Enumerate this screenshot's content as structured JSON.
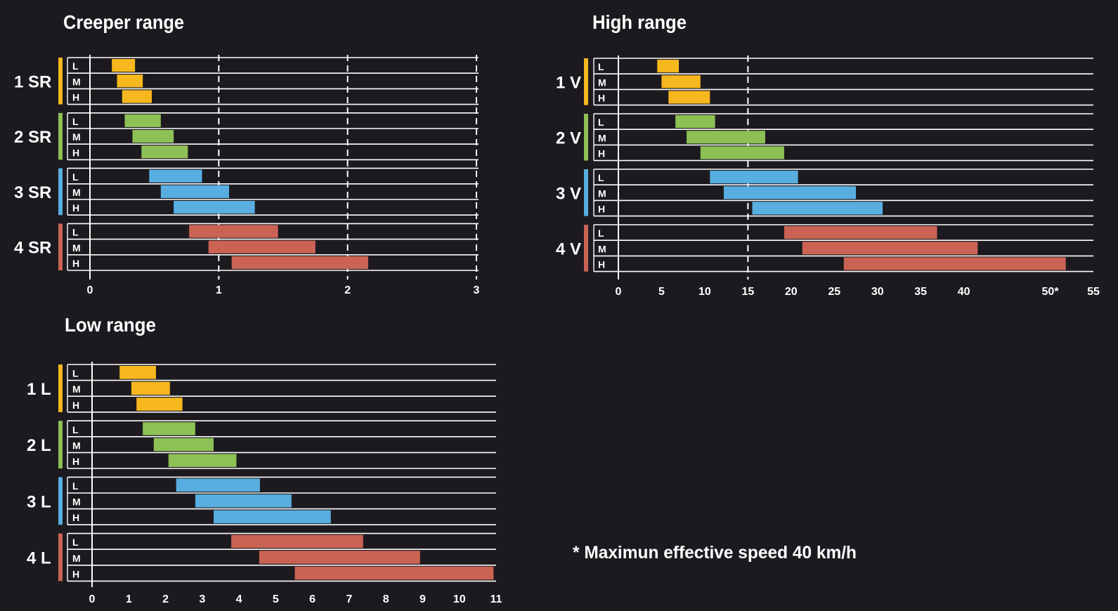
{
  "colors": {
    "background": "#1c1a1f",
    "gear1": "#f7b71e",
    "gear2": "#8dc055",
    "gear3": "#58aee0",
    "gear4": "#cb6354",
    "lines": "#ffffff"
  },
  "chart_data": [
    {
      "id": "creeper",
      "type": "bar",
      "orientation": "horizontal-range",
      "title": "Creeper range",
      "xlim": [
        0,
        3
      ],
      "xticks": [
        "0",
        "1",
        "2",
        "3"
      ],
      "dashed_at": [
        1,
        2,
        3
      ],
      "row_labels": [
        "L",
        "M",
        "H"
      ],
      "groups": [
        {
          "label": "1 SR",
          "color_key": "gear1",
          "bars": [
            [
              0.17,
              0.35
            ],
            [
              0.21,
              0.41
            ],
            [
              0.25,
              0.48
            ]
          ]
        },
        {
          "label": "2 SR",
          "color_key": "gear2",
          "bars": [
            [
              0.27,
              0.55
            ],
            [
              0.33,
              0.65
            ],
            [
              0.4,
              0.76
            ]
          ]
        },
        {
          "label": "3 SR",
          "color_key": "gear3",
          "bars": [
            [
              0.46,
              0.87
            ],
            [
              0.55,
              1.08
            ],
            [
              0.65,
              1.28
            ]
          ]
        },
        {
          "label": "4 SR",
          "color_key": "gear4",
          "bars": [
            [
              0.77,
              1.46
            ],
            [
              0.92,
              1.75
            ],
            [
              1.1,
              2.16
            ]
          ]
        }
      ]
    },
    {
      "id": "high",
      "type": "bar",
      "orientation": "horizontal-range",
      "title": "High range",
      "xlim": [
        0,
        55
      ],
      "xticks": [
        "0",
        "5",
        "10",
        "15",
        "20",
        "25",
        "30",
        "35",
        "40",
        "50*",
        "55"
      ],
      "xtick_values": [
        0,
        5,
        10,
        15,
        20,
        25,
        30,
        35,
        40,
        50,
        55
      ],
      "dashed_at": [
        15
      ],
      "row_labels": [
        "L",
        "M",
        "H"
      ],
      "groups": [
        {
          "label": "1 V",
          "color_key": "gear1",
          "bars": [
            [
              4.5,
              7.0
            ],
            [
              5.0,
              9.5
            ],
            [
              5.8,
              10.6
            ]
          ]
        },
        {
          "label": "2 V",
          "color_key": "gear2",
          "bars": [
            [
              6.6,
              11.2
            ],
            [
              7.9,
              17.0
            ],
            [
              9.5,
              19.2
            ]
          ]
        },
        {
          "label": "3 V",
          "color_key": "gear3",
          "bars": [
            [
              10.6,
              20.8
            ],
            [
              12.2,
              27.5
            ],
            [
              15.5,
              30.6
            ]
          ]
        },
        {
          "label": "4 V",
          "color_key": "gear4",
          "bars": [
            [
              19.2,
              36.9
            ],
            [
              21.3,
              41.6
            ],
            [
              26.1,
              51.8
            ]
          ]
        }
      ]
    },
    {
      "id": "low",
      "type": "bar",
      "orientation": "horizontal-range",
      "title": "Low range",
      "xlim": [
        0,
        11
      ],
      "xticks": [
        "0",
        "1",
        "2",
        "3",
        "4",
        "5",
        "6",
        "7",
        "8",
        "9",
        "10",
        "11"
      ],
      "dashed_at": [],
      "row_labels": [
        "L",
        "M",
        "H"
      ],
      "groups": [
        {
          "label": "1 L",
          "color_key": "gear1",
          "bars": [
            [
              0.75,
              1.74
            ],
            [
              1.07,
              2.12
            ],
            [
              1.21,
              2.46
            ]
          ]
        },
        {
          "label": "2 L",
          "color_key": "gear2",
          "bars": [
            [
              1.38,
              2.81
            ],
            [
              1.68,
              3.31
            ],
            [
              2.08,
              3.93
            ]
          ]
        },
        {
          "label": "3 L",
          "color_key": "gear3",
          "bars": [
            [
              2.29,
              4.57
            ],
            [
              2.81,
              5.43
            ],
            [
              3.31,
              6.5
            ]
          ]
        },
        {
          "label": "4 L",
          "color_key": "gear4",
          "bars": [
            [
              3.79,
              7.38
            ],
            [
              4.55,
              8.93
            ],
            [
              5.52,
              10.93
            ]
          ]
        }
      ]
    }
  ],
  "footnote": "* Maximun effective speed 40 km/h"
}
